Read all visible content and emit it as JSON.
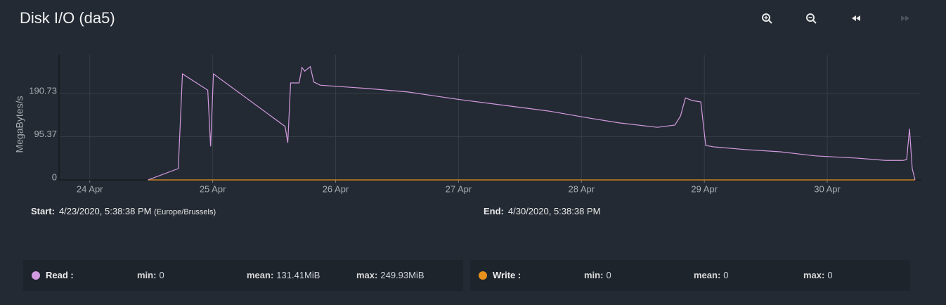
{
  "title": "Disk I/O (da5)",
  "chart_data": {
    "type": "line",
    "ylabel": "MegaBytes/s",
    "xlim": [
      23.75,
      30.76
    ],
    "xticks": [
      {
        "value": 24,
        "label": "24 Apr"
      },
      {
        "value": 25,
        "label": "25 Apr"
      },
      {
        "value": 26,
        "label": "26 Apr"
      },
      {
        "value": 27,
        "label": "27 Apr"
      },
      {
        "value": 28,
        "label": "28 Apr"
      },
      {
        "value": 29,
        "label": "29 Apr"
      },
      {
        "value": 30,
        "label": "30 Apr"
      }
    ],
    "ylim": [
      0,
      276
    ],
    "yticks": [
      0,
      95.37,
      190.73
    ],
    "grid": true,
    "series": [
      {
        "name": "Read",
        "color": "#d39ae0",
        "x": [
          24.474,
          24.72,
          24.754,
          24.96,
          24.983,
          25.006,
          25.589,
          25.611,
          25.634,
          25.703,
          25.726,
          25.749,
          25.794,
          25.823,
          25.874,
          26.246,
          26.589,
          26.989,
          27.389,
          27.731,
          28.074,
          28.303,
          28.617,
          28.76,
          28.806,
          28.846,
          28.903,
          28.971,
          29.011,
          29.074,
          29.331,
          29.617,
          29.903,
          30.246,
          30.474,
          30.617,
          30.646,
          30.669,
          30.691,
          30.714
        ],
        "values": [
          0,
          25,
          234,
          198,
          74,
          234,
          118,
          82,
          214,
          214,
          248,
          240,
          249.93,
          216,
          209,
          202,
          194,
          178,
          164,
          152,
          136,
          126,
          116,
          121,
          141,
          181,
          175,
          172,
          76,
          73,
          67,
          62,
          53,
          48,
          43,
          43,
          45,
          113,
          25,
          0
        ]
      },
      {
        "name": "Write",
        "color": "#e8901c",
        "x": [
          24.474,
          30.714
        ],
        "values": [
          0,
          0
        ]
      }
    ]
  },
  "range": {
    "start_label": "Start:",
    "start": "4/23/2020, 5:38:38 PM",
    "timezone": "(Europe/Brussels)",
    "end_label": "End:",
    "end": "4/30/2020, 5:38:38 PM"
  },
  "legend": [
    {
      "name": "Read :",
      "min_label": "min:",
      "min": "0",
      "mean_label": "mean:",
      "mean": "131.41MiB",
      "max_label": "max:",
      "max": "249.93MiB"
    },
    {
      "name": "Write :",
      "min_label": "min:",
      "min": "0",
      "mean_label": "mean:",
      "mean": "0",
      "max_label": "max:",
      "max": "0"
    }
  ]
}
